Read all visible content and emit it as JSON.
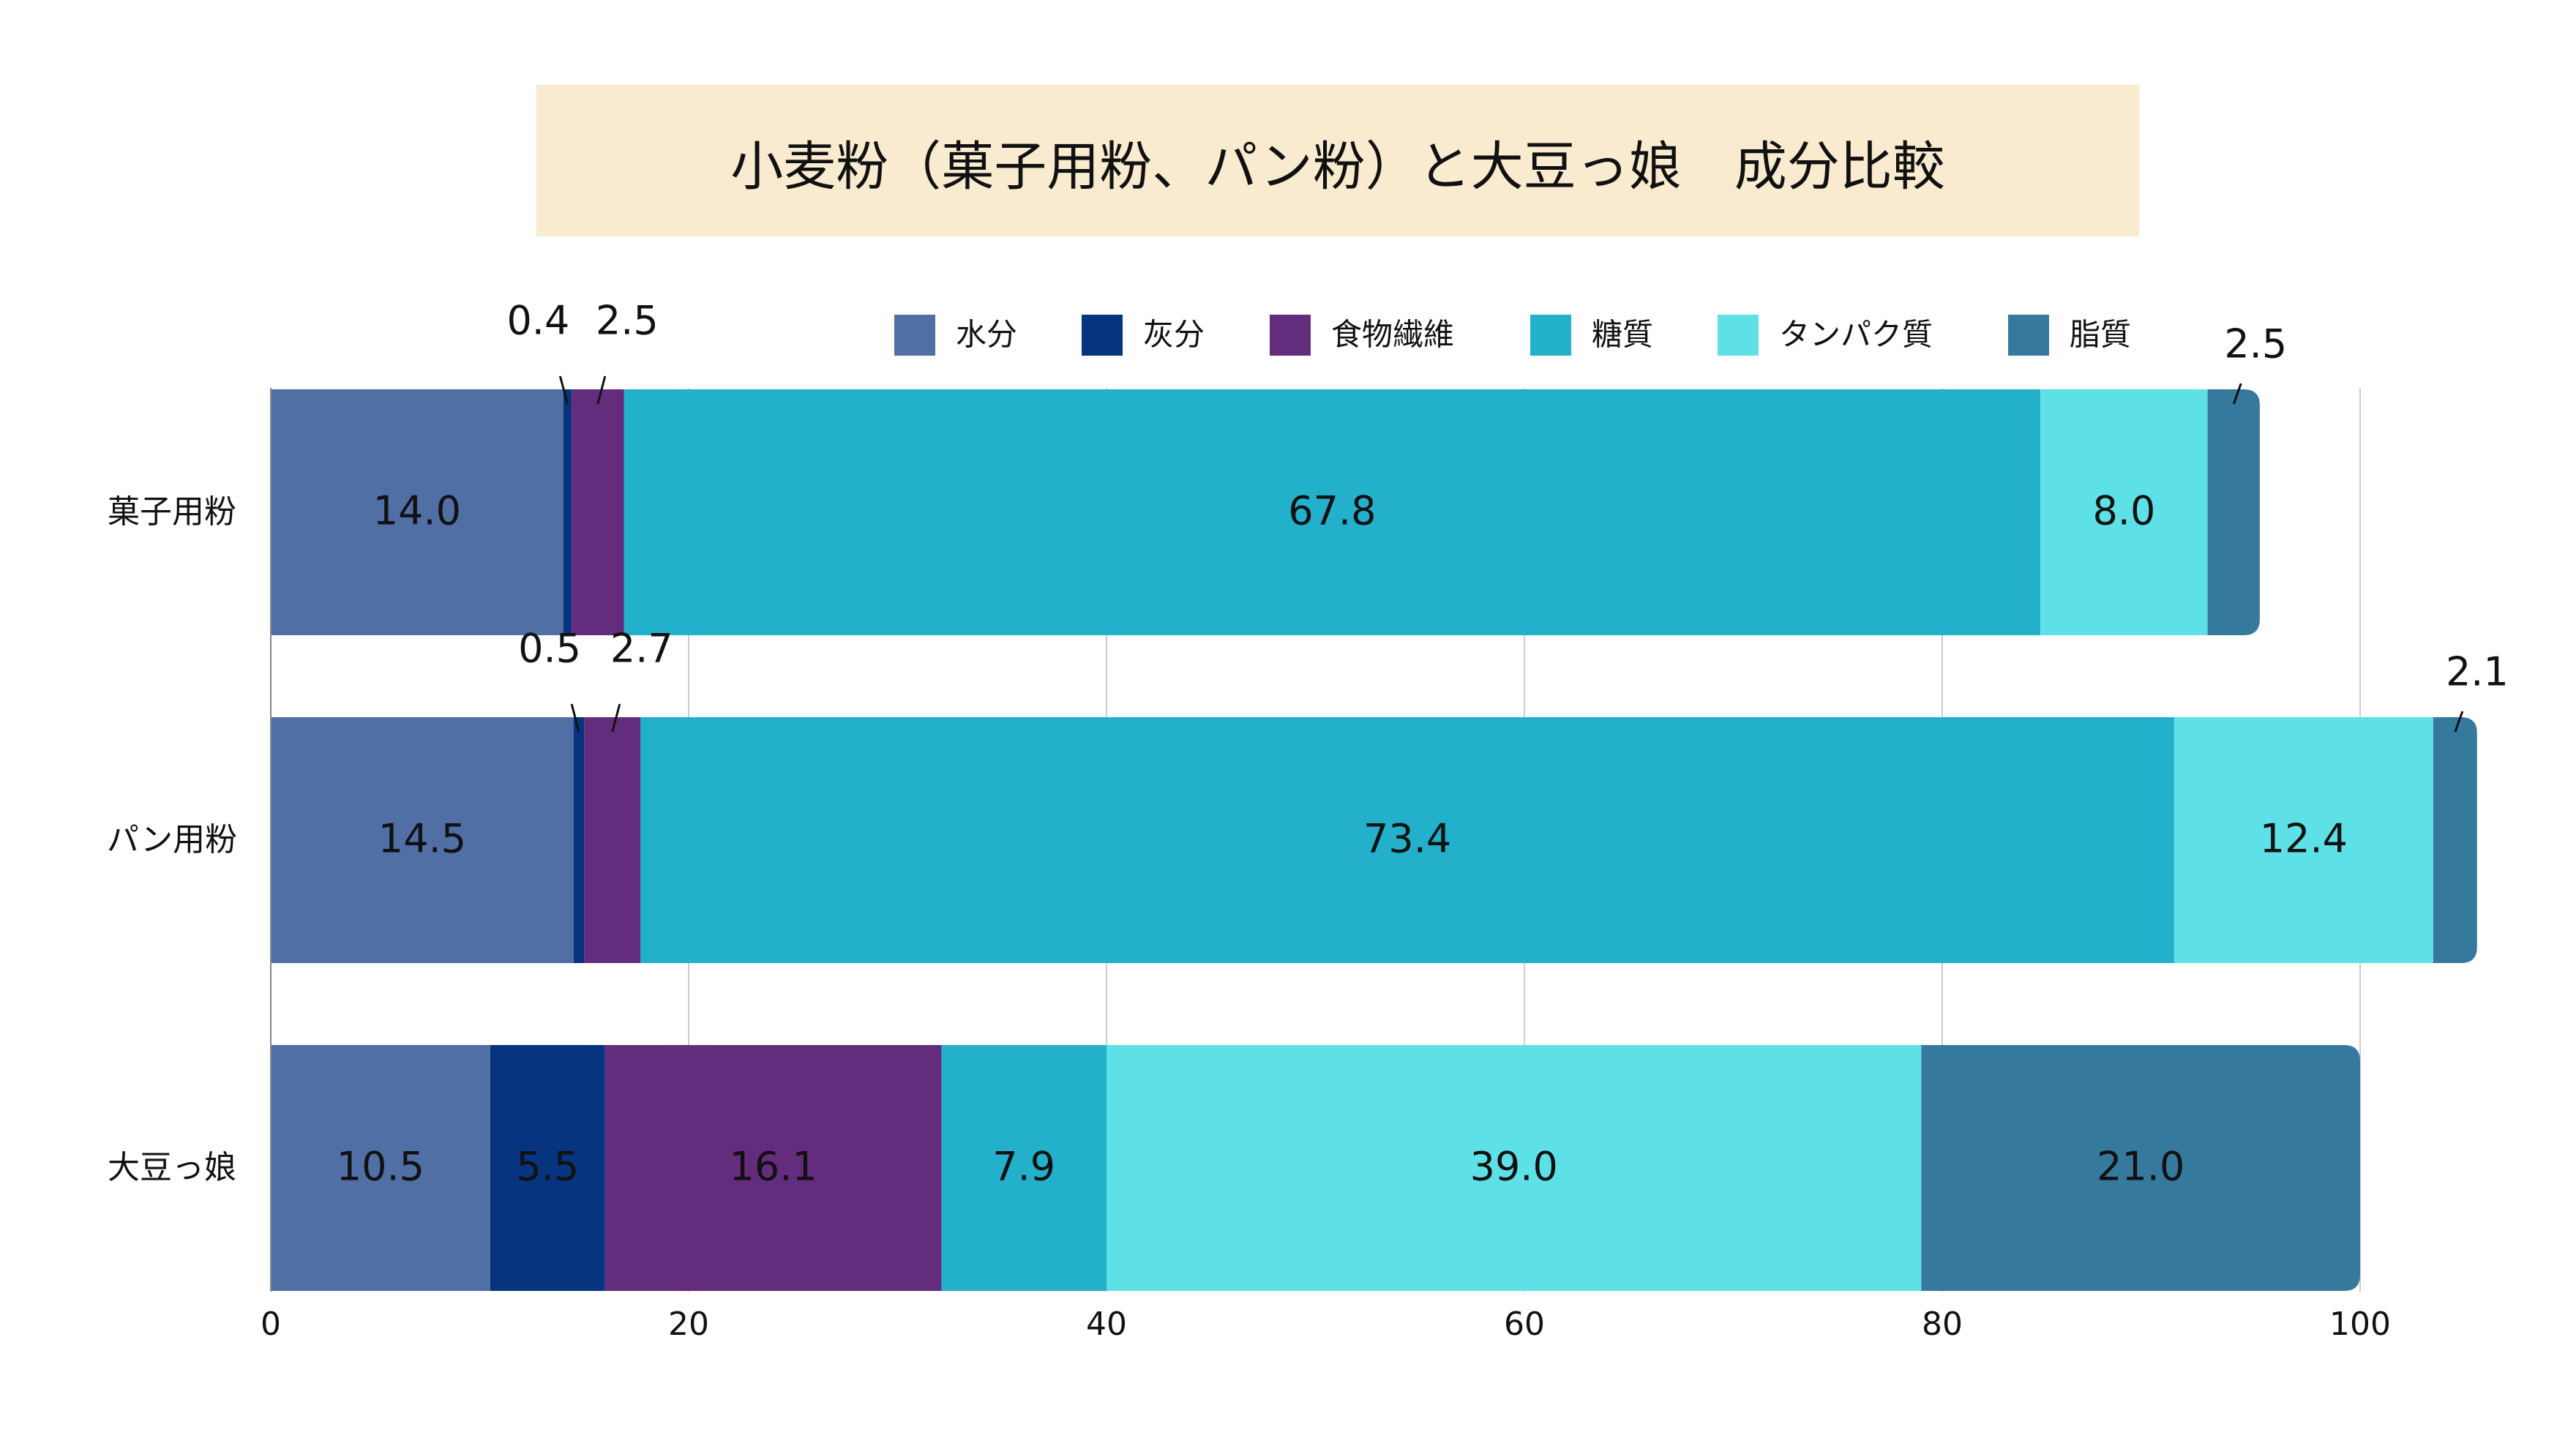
{
  "colors": {
    "background": "#ffffff",
    "title_box": "#f8ebcf",
    "grid": "#cccccc",
    "axis": "#888888"
  },
  "chart_data": {
    "type": "bar",
    "orientation": "horizontal",
    "stacked": true,
    "title": "小麦粉（菓子用粉、パン粉）と大豆っ娘　成分比較",
    "xlabel": "",
    "ylabel": "",
    "xlim": [
      0,
      100
    ],
    "xticks": [
      0,
      20,
      40,
      60,
      80,
      100
    ],
    "grid": true,
    "legend_position": "top",
    "categories": [
      "菓子用粉",
      "パン用粉",
      "大豆っ娘"
    ],
    "series": [
      {
        "name": "水分",
        "color": "#4f6fa5",
        "values": [
          14.0,
          14.5,
          10.5
        ]
      },
      {
        "name": "灰分",
        "color": "#06347e",
        "values": [
          0.4,
          0.5,
          5.5
        ]
      },
      {
        "name": "食物繊維",
        "color": "#642c7d",
        "values": [
          2.5,
          2.7,
          16.1
        ]
      },
      {
        "name": "糖質",
        "color": "#22b0cb",
        "values": [
          67.8,
          73.4,
          7.9
        ]
      },
      {
        "name": "タンパク質",
        "color": "#5ee1e6",
        "values": [
          8.0,
          12.4,
          39.0
        ]
      },
      {
        "name": "脂質",
        "color": "#35799d",
        "values": [
          2.5,
          2.1,
          21.0
        ]
      }
    ],
    "data_labels": [
      [
        "14.0",
        "0.4",
        "2.5",
        "67.8",
        "8.0",
        "2.5"
      ],
      [
        "14.5",
        "0.5",
        "2.7",
        "73.4",
        "12.4",
        "2.1"
      ],
      [
        "10.5",
        "5.5",
        "16.1",
        "7.9",
        "39.0",
        "21.0"
      ]
    ]
  }
}
